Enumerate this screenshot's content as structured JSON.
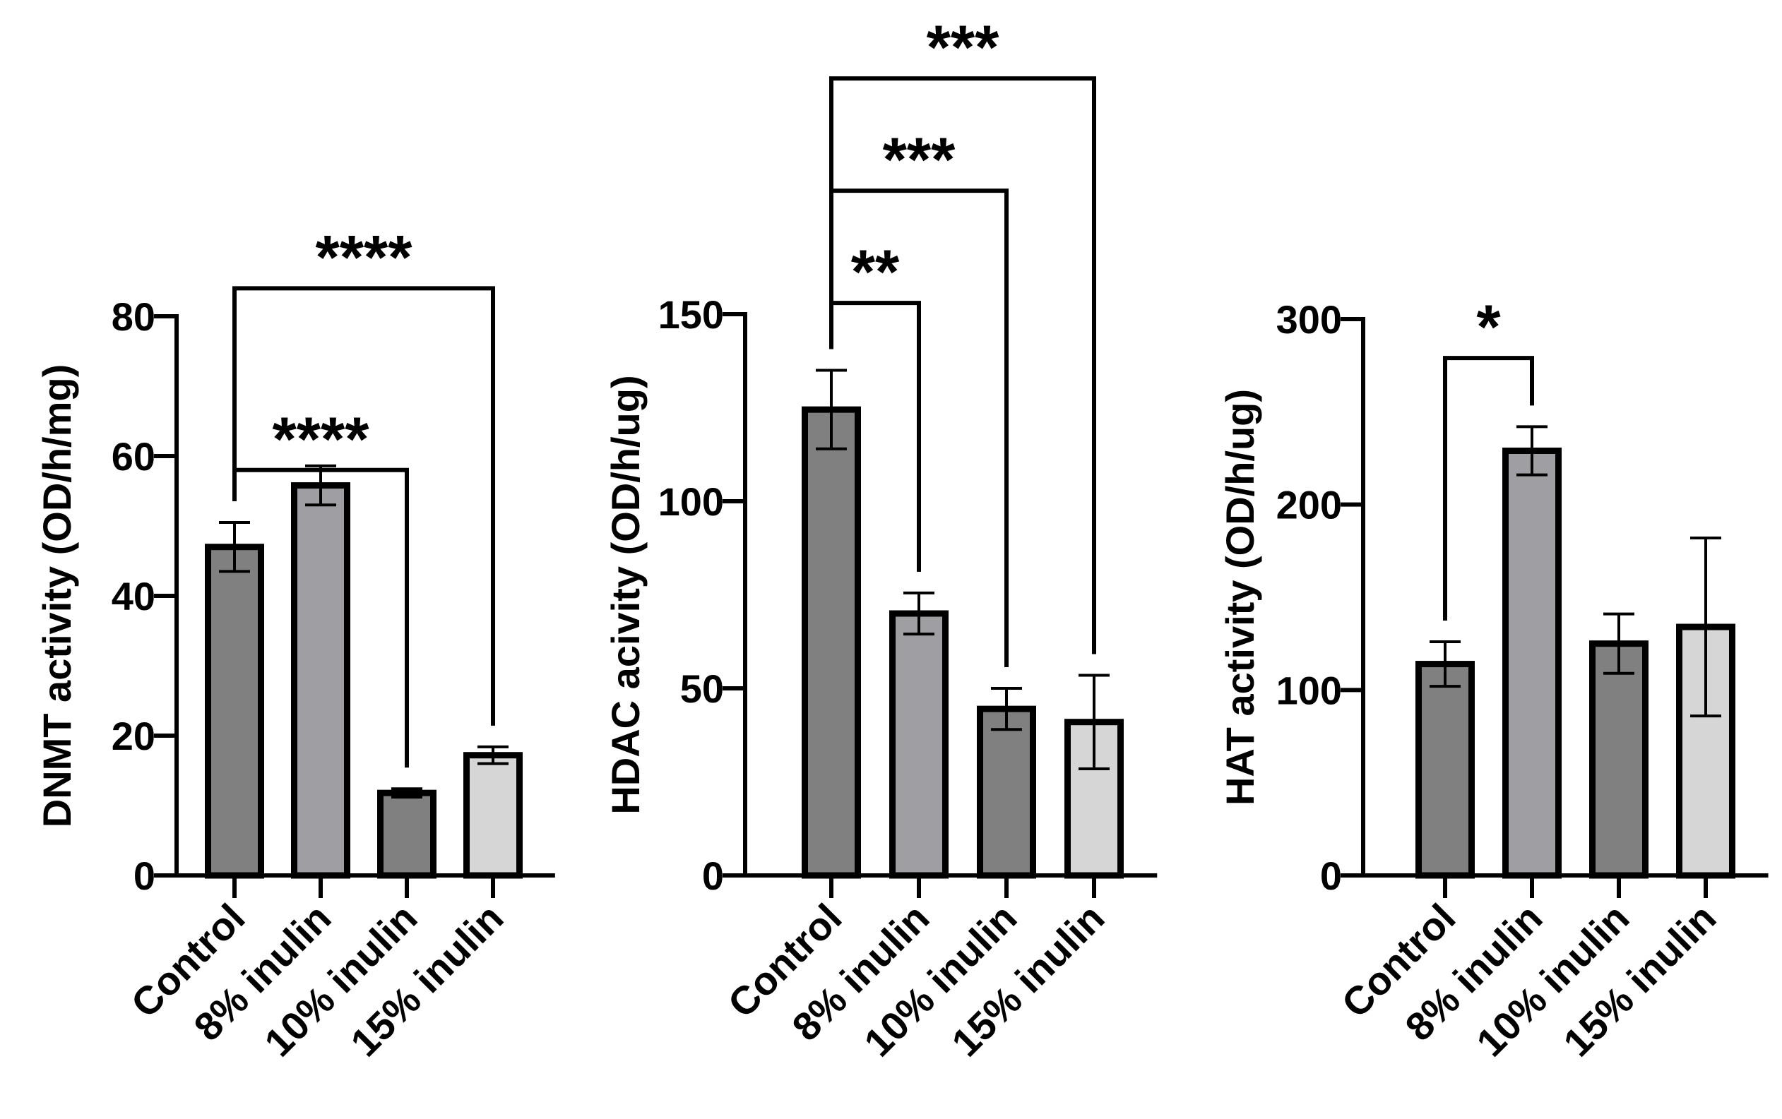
{
  "chart_data": [
    {
      "type": "bar",
      "ylabel": "DNMT activity (OD/h/mg)",
      "categories": [
        "Control",
        "8% inulin",
        "10% inulin",
        "15% inulin"
      ],
      "values": [
        47,
        55.8,
        11.8,
        17.2
      ],
      "errors": [
        3.5,
        2.8,
        0.6,
        1.2
      ],
      "fills": [
        "#808080",
        "#9e9ea3",
        "#808080",
        "#d6d6d6"
      ],
      "ylim": [
        0,
        80
      ],
      "yticks": [
        0,
        20,
        40,
        60,
        80
      ],
      "ytick_labels": [
        "0",
        "20",
        "40",
        "60",
        "80"
      ],
      "comparisons": [
        {
          "from": 0,
          "to": 2,
          "label": "****",
          "level": 58
        },
        {
          "from": 0,
          "to": 3,
          "label": "****",
          "level": 84
        }
      ]
    },
    {
      "type": "bar",
      "ylabel": "HDAC acivity (OD/h/ug)",
      "categories": [
        "Control",
        "8% inulin",
        "10% inulin",
        "15% inulin"
      ],
      "values": [
        124.5,
        70,
        44.5,
        41
      ],
      "errors": [
        10.5,
        5.5,
        5.5,
        12.5
      ],
      "fills": [
        "#808080",
        "#9e9ea3",
        "#808080",
        "#d6d6d6"
      ],
      "ylim": [
        0,
        150
      ],
      "yticks": [
        0,
        50,
        100,
        150
      ],
      "ytick_labels": [
        "0",
        "50",
        "100",
        "150"
      ],
      "comparisons": [
        {
          "from": 0,
          "to": 1,
          "label": "**",
          "level": 153
        },
        {
          "from": 0,
          "to": 2,
          "label": "***",
          "level": 183
        },
        {
          "from": 0,
          "to": 3,
          "label": "***",
          "level": 213
        }
      ]
    },
    {
      "type": "bar",
      "ylabel": "HAT activity (OD/h/ug)",
      "categories": [
        "Control",
        "8% inulin",
        "10% inulin",
        "15% inulin"
      ],
      "values": [
        114,
        229,
        125,
        134
      ],
      "errors": [
        12,
        13,
        16,
        48
      ],
      "fills": [
        "#808080",
        "#9e9ea3",
        "#808080",
        "#d6d6d6"
      ],
      "ylim": [
        0,
        300
      ],
      "yticks": [
        0,
        100,
        200,
        300
      ],
      "ytick_labels": [
        "0",
        "100",
        "200",
        "300"
      ],
      "comparisons": [
        {
          "from": 0,
          "to": 1,
          "label": "*",
          "level": 279
        }
      ]
    }
  ]
}
